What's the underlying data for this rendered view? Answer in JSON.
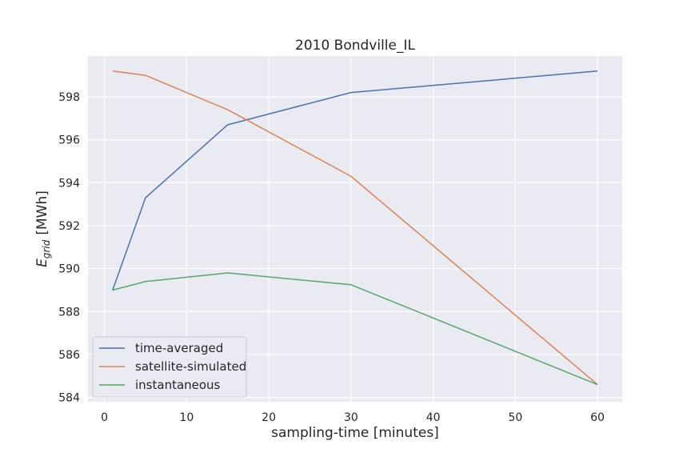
{
  "chart_data": {
    "type": "line",
    "title": "2010 Bondville_IL",
    "xlabel": "sampling-time [minutes]",
    "ylabel_main": "E",
    "ylabel_sub": "grid",
    "ylabel_unit": "[MWh]",
    "xlim": [
      -2,
      63
    ],
    "ylim": [
      583.8,
      599.9
    ],
    "xticks": [
      0,
      10,
      20,
      30,
      40,
      50,
      60
    ],
    "yticks": [
      584,
      586,
      588,
      590,
      592,
      594,
      596,
      598
    ],
    "grid": true,
    "legend_position": "lower-left",
    "x": [
      1,
      5,
      15,
      30,
      60
    ],
    "series": [
      {
        "name": "time-averaged",
        "color": "#4c72b0",
        "values": [
          589.0,
          593.3,
          596.7,
          598.2,
          599.2
        ]
      },
      {
        "name": "satellite-simulated",
        "color": "#dd8452",
        "values": [
          599.2,
          599.0,
          597.4,
          594.3,
          584.6
        ]
      },
      {
        "name": "instantaneous",
        "color": "#55a868",
        "values": [
          589.0,
          589.4,
          589.8,
          589.25,
          584.6
        ]
      }
    ]
  }
}
